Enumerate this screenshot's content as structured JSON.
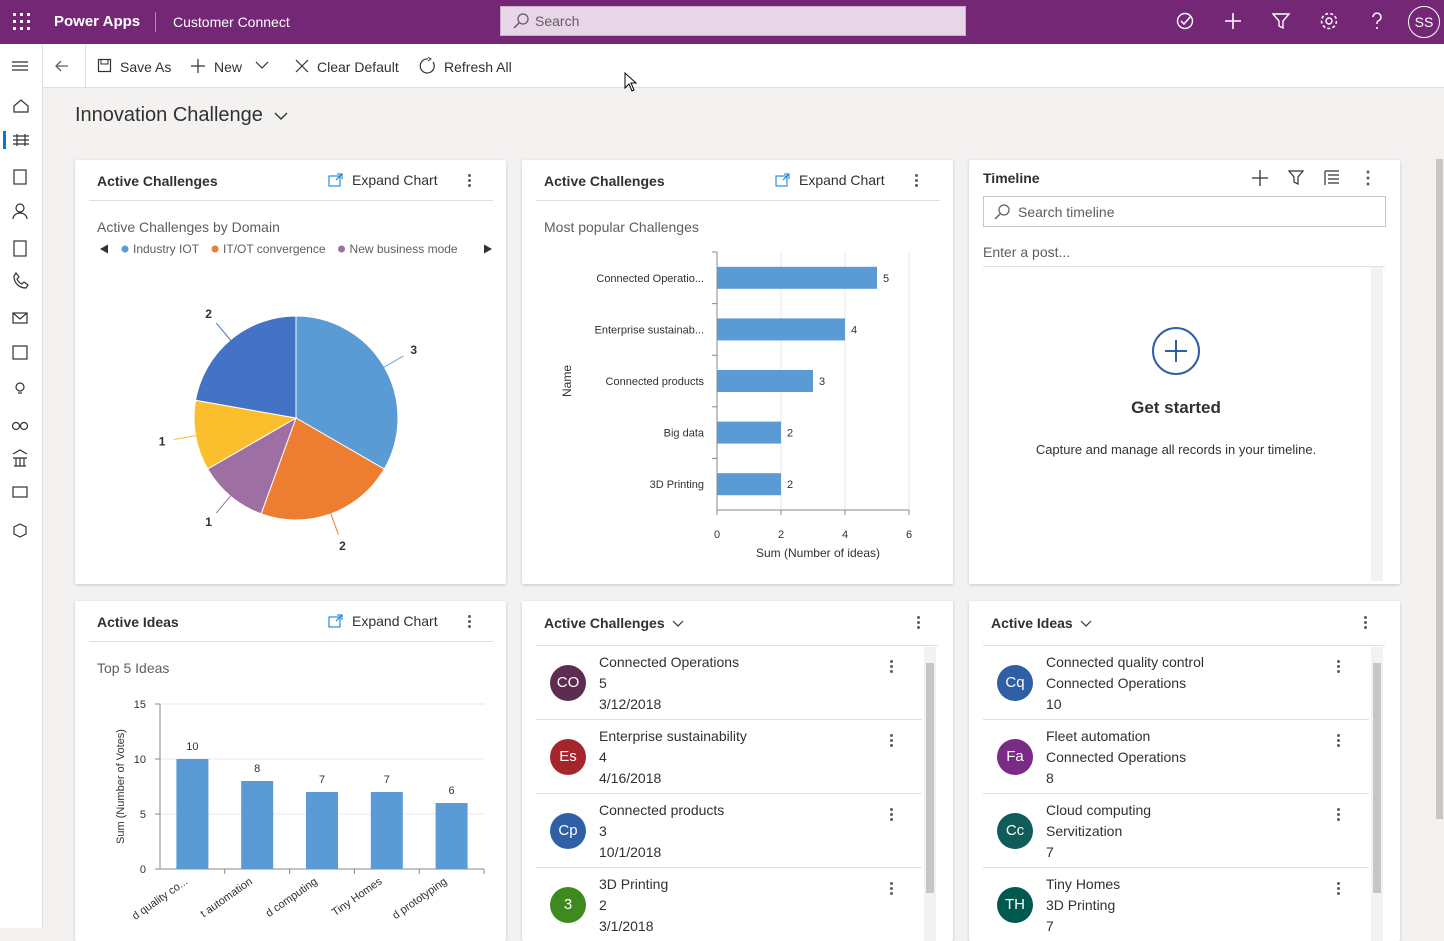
{
  "header": {
    "app_name": "Power Apps",
    "environment": "Customer Connect",
    "search_placeholder": "Search",
    "user_initials": "SS"
  },
  "command_bar": {
    "items": [
      "Save As",
      "New",
      "Clear Default",
      "Refresh All"
    ]
  },
  "dashboard": {
    "title": "Innovation Challenge"
  },
  "panels": [
    {
      "title": "Active Challenges",
      "action": "Expand Chart"
    },
    {
      "title": "Active Challenges",
      "action": "Expand Chart"
    },
    {
      "title": "Timeline",
      "search_placeholder": "Search timeline",
      "post_placeholder": "Enter a post...",
      "empty_title": "Get started",
      "empty_text": "Capture and manage all records in your timeline."
    },
    {
      "title": "Active Ideas",
      "action": "Expand Chart"
    },
    {
      "title": "Active Challenges",
      "items": [
        {
          "initials": "CO",
          "color": "#5c2d50",
          "lines": [
            "Connected Operations",
            "5",
            "3/12/2018"
          ]
        },
        {
          "initials": "Es",
          "color": "#a4262c",
          "lines": [
            "Enterprise sustainability",
            "4",
            "4/16/2018"
          ]
        },
        {
          "initials": "Cp",
          "color": "#2f5fa5",
          "lines": [
            "Connected products",
            "3",
            "10/1/2018"
          ]
        },
        {
          "initials": "3",
          "color": "#3f8a1e",
          "lines": [
            "3D Printing",
            "2",
            "3/1/2018"
          ]
        }
      ]
    },
    {
      "title": "Active Ideas",
      "items": [
        {
          "initials": "Cq",
          "color": "#2f5fa5",
          "lines": [
            "Connected quality control",
            "Connected Operations",
            "10"
          ]
        },
        {
          "initials": "Fa",
          "color": "#7a2b85",
          "lines": [
            "Fleet automation",
            "Connected Operations",
            "8"
          ]
        },
        {
          "initials": "Cc",
          "color": "#0f5c5a",
          "lines": [
            "Cloud computing",
            "Servitization",
            "7"
          ]
        },
        {
          "initials": "TH",
          "color": "#00594f",
          "lines": [
            "Tiny Homes",
            "3D Printing",
            "7"
          ]
        }
      ]
    }
  ],
  "chart_data": [
    {
      "type": "pie",
      "title": "Active Challenges by Domain",
      "categories": [
        "Industry IOT",
        "IT/OT convergence",
        "New business mode",
        null,
        null
      ],
      "values": [
        3,
        2,
        1,
        1,
        2
      ],
      "colors": [
        "#5b9bd5",
        "#ed7d31",
        "#9e6fa3",
        "#fbbf2d",
        "#4472c4"
      ]
    },
    {
      "type": "hbar",
      "title": "Most popular Challenges",
      "categories": [
        "Connected Operatio...",
        "Enterprise sustainab...",
        "Connected products",
        "Big data",
        "3D Printing"
      ],
      "values": [
        5,
        4,
        3,
        2,
        2
      ],
      "color": "#5b9bd5",
      "xlim": [
        0,
        6
      ],
      "xticks": [
        0,
        2,
        4,
        6
      ],
      "xlabel": "Sum (Number of ideas)",
      "ylabel": "Name",
      "grid": true
    },
    {
      "type": "bar",
      "title": "Top 5 Ideas",
      "categories": [
        "d quality co...",
        "t automation",
        "d computing",
        "Tiny Homes",
        "d prototyping"
      ],
      "values": [
        10,
        8,
        7,
        7,
        6
      ],
      "color": "#5b9bd5",
      "ylim": [
        0,
        15
      ],
      "yticks": [
        0,
        5,
        10,
        15
      ],
      "ylabel": "Sum (Number of Votes)",
      "grid": true
    }
  ]
}
